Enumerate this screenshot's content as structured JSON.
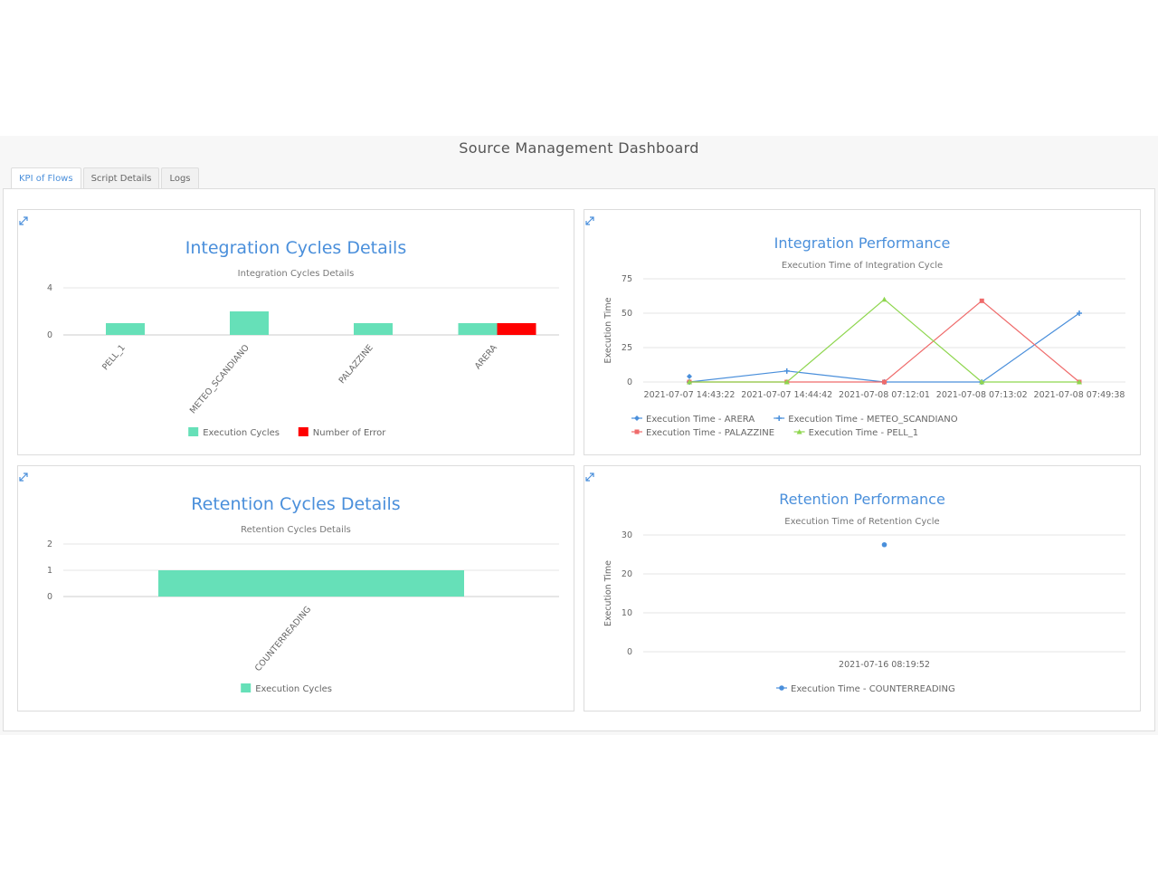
{
  "app": {
    "title": "Source Management Dashboard"
  },
  "tabs": [
    {
      "label": "KPI of Flows",
      "active": true
    },
    {
      "label": "Script Details",
      "active": false
    },
    {
      "label": "Logs",
      "active": false
    }
  ],
  "colors": {
    "accent": "#4a8fdb",
    "execution_cycles": "#66e0b8",
    "errors": "#ff0000",
    "arera": "#4a8fdb",
    "meteo": "#4a8fdb",
    "palazzine": "#ef6b6b",
    "pell": "#8ed64e"
  },
  "panels": {
    "integration_cycles": {
      "expand_icon": "expand-icon"
    },
    "integration_performance": {
      "expand_icon": "expand-icon"
    },
    "retention_cycles": {
      "expand_icon": "expand-icon"
    },
    "retention_performance": {
      "expand_icon": "expand-icon"
    }
  },
  "chart_data": [
    {
      "id": "integration_cycles",
      "type": "bar",
      "title": "Integration Cycles Details",
      "subtitle": "Integration Cycles Details",
      "categories": [
        "PELL_1",
        "METEO_SCANDIANO",
        "PALAZZINE",
        "ARERA"
      ],
      "series": [
        {
          "name": "Execution Cycles",
          "values": [
            1,
            2,
            1,
            1
          ],
          "color": "#66e0b8"
        },
        {
          "name": "Number of Error",
          "values": [
            0,
            0,
            0,
            1
          ],
          "color": "#ff0000"
        }
      ],
      "yticks": [
        "4",
        "0"
      ],
      "ylim": [
        0,
        4
      ],
      "legend_position": "bottom"
    },
    {
      "id": "integration_performance",
      "type": "line",
      "title": "Integration Performance",
      "subtitle": "Execution Time of Integration Cycle",
      "ylabel": "Execution Time",
      "x": [
        "2021-07-07 14:43:22",
        "2021-07-07 14:44:42",
        "2021-07-08 07:12:01",
        "2021-07-08 07:13:02",
        "2021-07-08 07:49:38"
      ],
      "yticks": [
        "75",
        "50",
        "25",
        "0"
      ],
      "ylim": [
        0,
        75
      ],
      "series": [
        {
          "name": "Execution Time - ARERA",
          "values": [
            4,
            null,
            null,
            null,
            null
          ],
          "color": "#4a8fdb",
          "marker": "diamond"
        },
        {
          "name": "Execution Time - METEO_SCANDIANO",
          "values": [
            0,
            8,
            0,
            0,
            50
          ],
          "color": "#4a8fdb",
          "marker": "cross"
        },
        {
          "name": "Execution Time - PALAZZINE",
          "values": [
            0,
            0,
            0,
            59,
            0
          ],
          "color": "#ef6b6b",
          "marker": "square"
        },
        {
          "name": "Execution Time - PELL_1",
          "values": [
            0,
            0,
            60,
            0,
            0
          ],
          "color": "#8ed64e",
          "marker": "triangle"
        }
      ],
      "legend_position": "bottom"
    },
    {
      "id": "retention_cycles",
      "type": "bar",
      "title": "Retention Cycles Details",
      "subtitle": "Retention Cycles Details",
      "categories": [
        "COUNTERREADING"
      ],
      "series": [
        {
          "name": "Execution Cycles",
          "values": [
            1
          ],
          "color": "#66e0b8"
        }
      ],
      "yticks": [
        "2",
        "1",
        "0"
      ],
      "ylim": [
        0,
        2
      ],
      "legend_position": "bottom"
    },
    {
      "id": "retention_performance",
      "type": "scatter",
      "title": "Retention Performance",
      "subtitle": "Execution Time of Retention Cycle",
      "ylabel": "Execution Time",
      "x": [
        "2021-07-16 08:19:52"
      ],
      "yticks": [
        "30",
        "20",
        "10",
        "0"
      ],
      "ylim": [
        0,
        30
      ],
      "series": [
        {
          "name": "Execution Time - COUNTERREADING",
          "values": [
            27.5
          ],
          "color": "#4a8fdb",
          "marker": "circle"
        }
      ],
      "legend_position": "bottom"
    }
  ]
}
